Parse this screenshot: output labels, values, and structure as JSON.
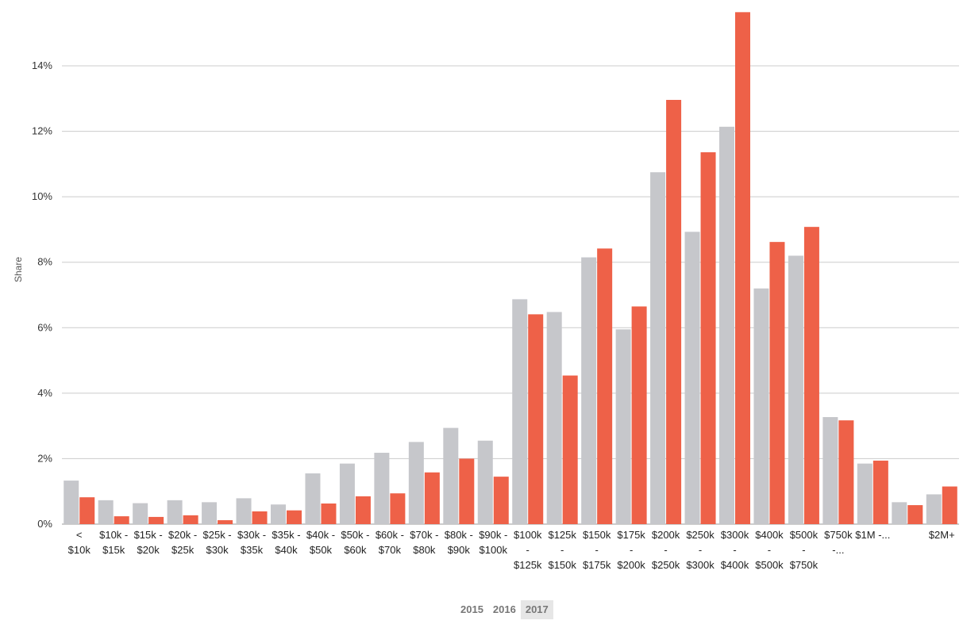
{
  "chart_data": {
    "type": "bar",
    "title": "",
    "xlabel": "",
    "ylabel": "Share",
    "ylim": [
      0,
      15.6
    ],
    "y_ticks": [
      "0%",
      "2%",
      "4%",
      "6%",
      "8%",
      "10%",
      "12%",
      "14%"
    ],
    "y_tick_values": [
      0,
      2,
      4,
      6,
      8,
      10,
      12,
      14
    ],
    "categories": [
      [
        "<",
        "$10k"
      ],
      [
        "$10k -",
        "$15k"
      ],
      [
        "$15k -",
        "$20k"
      ],
      [
        "$20k -",
        "$25k"
      ],
      [
        "$25k -",
        "$30k"
      ],
      [
        "$30k -",
        "$35k"
      ],
      [
        "$35k -",
        "$40k"
      ],
      [
        "$40k -",
        "$50k"
      ],
      [
        "$50k -",
        "$60k"
      ],
      [
        "$60k -",
        "$70k"
      ],
      [
        "$70k -",
        "$80k"
      ],
      [
        "$80k -",
        "$90k"
      ],
      [
        "$90k -",
        "$100k"
      ],
      [
        "$100k",
        "-",
        "$125k"
      ],
      [
        "$125k",
        "-",
        "$150k"
      ],
      [
        "$150k",
        "-",
        "$175k"
      ],
      [
        "$175k",
        "-",
        "$200k"
      ],
      [
        "$200k",
        "-",
        "$250k"
      ],
      [
        "$250k",
        "-",
        "$300k"
      ],
      [
        "$300k",
        "-",
        "$400k"
      ],
      [
        "$400k",
        "-",
        "$500k"
      ],
      [
        "$500k",
        "-",
        "$750k"
      ],
      [
        "$750k",
        "-..."
      ],
      [
        "$1M -..."
      ],
      [
        ""
      ],
      [
        "$2M+"
      ]
    ],
    "series": [
      {
        "name": "2016",
        "color": "#c6c7cb",
        "values": [
          1.33,
          0.73,
          0.64,
          0.73,
          0.67,
          0.79,
          0.6,
          1.55,
          1.85,
          2.18,
          2.51,
          2.94,
          2.55,
          6.87,
          6.48,
          8.15,
          5.95,
          10.75,
          8.93,
          12.14,
          7.2,
          8.2,
          3.27,
          1.85,
          0.67,
          0.91
        ]
      },
      {
        "name": "2017",
        "color": "#ee6148",
        "values": [
          0.82,
          0.24,
          0.22,
          0.27,
          0.12,
          0.39,
          0.42,
          0.63,
          0.85,
          0.94,
          1.58,
          2.0,
          1.45,
          6.41,
          4.54,
          8.42,
          6.65,
          12.96,
          11.36,
          15.64,
          8.62,
          9.08,
          3.17,
          1.94,
          0.58,
          1.15
        ]
      }
    ]
  },
  "year_selector": {
    "years": [
      "2015",
      "2016",
      "2017"
    ],
    "active": "2017"
  }
}
